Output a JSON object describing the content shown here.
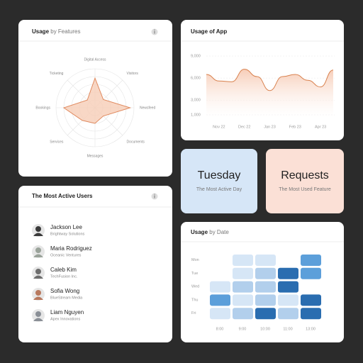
{
  "usage_by_features": {
    "title_bold": "Usage",
    "title_rest": " by Features",
    "chart_data": {
      "type": "radar",
      "axes": [
        "Digital Access",
        "Visitors",
        "Newsfeed",
        "Documents",
        "Messages",
        "Services",
        "Bookings",
        "Ticketing"
      ],
      "values": [
        3.8,
        1.5,
        4.5,
        1.5,
        2,
        2.3,
        4,
        1.4
      ],
      "rlim": [
        0,
        5
      ],
      "color": "#e08a5f",
      "fill": "#f6cdb7"
    }
  },
  "usage_of_app": {
    "title": "Usage of App",
    "chart_data": {
      "type": "area",
      "categories": [
        null,
        "Nov 22",
        null,
        "Dec 22",
        null,
        "Jan 23",
        null,
        "Feb 23",
        null,
        "Apr 23",
        null
      ],
      "values": [
        6500,
        5600,
        5500,
        7200,
        6200,
        4300,
        6200,
        6500,
        5700,
        4800,
        7100
      ],
      "ylim": [
        1000,
        9000
      ],
      "yticks": [
        {
          "value": 1000,
          "label": "1,000"
        },
        {
          "value": 3000,
          "label": "3,000"
        },
        {
          "value": 6000,
          "label": "6,000"
        },
        {
          "value": 9000,
          "label": "9,000"
        }
      ],
      "grid": true,
      "color": "#d9824f",
      "fill": "#f7cdb8"
    }
  },
  "most_active_day": {
    "value": "Tuesday",
    "caption": "The Most Active Day"
  },
  "most_used_feature": {
    "value": "Requests",
    "caption": "The Most Used Feature"
  },
  "most_active_users": {
    "title": "The Most Active Users",
    "users": [
      {
        "name": "Jackson Lee",
        "company": "Brightway Solutions"
      },
      {
        "name": "Maria Rodriguez",
        "company": "Oceanic Ventures"
      },
      {
        "name": "Caleb Kim",
        "company": "TechFusion Inc."
      },
      {
        "name": "Sofia Wong",
        "company": "BlueStream Media"
      },
      {
        "name": "Liam Nguyen",
        "company": "Apex Innovations"
      }
    ]
  },
  "usage_by_date": {
    "title_bold": "Usage",
    "title_rest": " by Date",
    "chart_data": {
      "type": "heatmap",
      "rows": [
        "Mon",
        "Tue",
        "Wed",
        "Thu",
        "Fri"
      ],
      "columns": [
        "8:00",
        "9:00",
        "10:00",
        "11:00",
        "13:00"
      ],
      "values": [
        [
          0,
          1,
          1,
          0,
          3
        ],
        [
          0,
          1,
          2,
          4,
          3
        ],
        [
          1,
          2,
          2,
          4,
          0
        ],
        [
          3,
          1,
          2,
          1,
          4
        ],
        [
          1,
          2,
          4,
          2,
          4
        ]
      ],
      "colors": [
        "#ffffff",
        "#d6e6f6",
        "#b2cfec",
        "#5c9fda",
        "#2a6db0"
      ]
    }
  }
}
